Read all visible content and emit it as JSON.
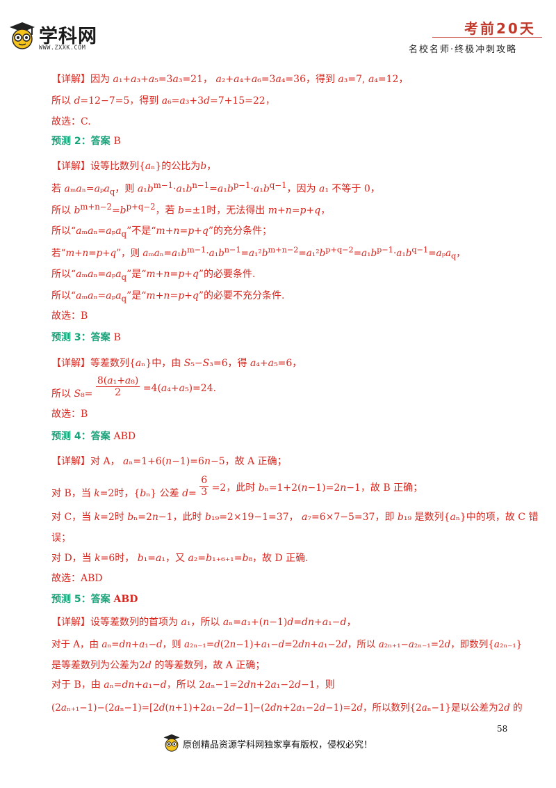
{
  "header": {
    "logo_text": "学科网",
    "logo_url": "WWW.ZXXK.COM",
    "title": "考前20天",
    "subtitle": "名校名师·终极冲刺攻略"
  },
  "lines": [
    {
      "id": "l1",
      "text": "【详解】因为 a₁+a₃+a₅=3a₃=21， a₂+a₄+a₆=3a₄=36，得到 a₃=7, a₄=12，"
    },
    {
      "id": "l2",
      "text": "所以 d=12−7=5，得到 a₆=a₃+3d=7+15=22，"
    },
    {
      "id": "l3",
      "text": "故选：C."
    },
    {
      "id": "p2",
      "label": "预测 2：答案",
      "answer": "B"
    },
    {
      "id": "l4",
      "text": "【详解】设等比数列{aₙ}的公比为b，"
    },
    {
      "id": "l5",
      "text": "若 aₘaₙ=aₚa_q，则 a₁bᵐ⁻¹·a₁bⁿ⁻¹=a₁bᵖ⁻¹·a₁b^(q−1)，因为 a₁ 不等于 0，"
    },
    {
      "id": "l6",
      "text": "所以 b^(m+n−2)=b^(p+q−2)，若 b=±1时，无法得出 m+n=p+q，"
    },
    {
      "id": "l7",
      "text": "所以“aₘaₙ=aₚa_q”不是“m+n=p+q”的充分条件；"
    },
    {
      "id": "l8",
      "text": "若“m+n=p+q”，则 aₘaₙ=a₁bᵐ⁻¹·a₁bⁿ⁻¹=a₁²b^(m+n−2)=a₁²b^(p+q−2)=a₁bᵖ⁻¹·a₁b^(q−1)=aₚa_q，"
    },
    {
      "id": "l9",
      "text": "所以“aₘaₙ=aₚa_q”是“m+n=p+q”的必要条件."
    },
    {
      "id": "l10",
      "text": "所以“aₘaₙ=aₚa_q”是“m+n=p+q”的必要不充分条件."
    },
    {
      "id": "l11",
      "text": "故选：B"
    },
    {
      "id": "p3",
      "label": "预测 3：答案",
      "answer": "B"
    },
    {
      "id": "l12",
      "text": "【详解】等差数列{aₙ}中，由 S₅−S₃=6，得 a₄+a₅=6，"
    },
    {
      "id": "l13",
      "text": "所以 S₈ = 8(a₁+a₈)/2 = 4(a₄+a₅) = 24."
    },
    {
      "id": "l14",
      "text": "故选：B"
    },
    {
      "id": "p4",
      "label": "预测 4：答案",
      "answer": "ABD"
    },
    {
      "id": "l15",
      "text": "【详解】对 A， aₙ=1+6(n−1)=6n−5，故 A 正确；"
    },
    {
      "id": "l16",
      "text": "对 B，当 k=2时，{bₙ} 公差 d = 6/3 = 2，此时 bₙ=1+2(n−1)=2n−1，故 B 正确；"
    },
    {
      "id": "l17",
      "text": "对 C，当 k=2时 bₙ=2n−1，此时 b₁₉=2×19−1=37， a₇=6×7−5=37，即 b₁₉ 是数列{aₙ}中的项，故 C 错"
    },
    {
      "id": "l18",
      "text": "误；"
    },
    {
      "id": "l19",
      "text": "对 D，当 k=6时， b₁=a₁，又 a₂=b₁₊₆₊₁=b₈，故 D 正确."
    },
    {
      "id": "l20",
      "text": "故选：ABD"
    },
    {
      "id": "p5",
      "label": "预测 5：答案",
      "answer": "ABD"
    },
    {
      "id": "l21",
      "text": "【详解】设等差数列的首项为 a₁，所以 aₙ=a₁+(n−1)d=dn+a₁−d，"
    },
    {
      "id": "l22",
      "text": "对于 A，由 aₙ=dn+a₁−d，则 a₂ₙ₋₁=d(2n−1)+a₁−d=2dn+a₁−2d，所以 a₂ₙ₊₁−a₂ₙ₋₁=2d，即数列{a₂ₙ₋₁}"
    },
    {
      "id": "l23",
      "text": "是等差数列为公差为2d 的等差数列，故 A 正确；"
    },
    {
      "id": "l24",
      "text": "对于 B，由 aₙ=dn+a₁−d，所以 2aₙ−1=2dn+2a₁−2d−1，则"
    },
    {
      "id": "l25",
      "text": "(2aₙ₊₁−1)−(2aₙ−1)=[2d(n+1)+2a₁−2d−1]−(2dn+2a₁−2d−1)=2d，所以数列{2aₙ−1}是以公差为2d 的"
    }
  ],
  "footer": {
    "page_number": "58",
    "copyright": "原创精品资源学科网独家享有版权，侵权必究！"
  }
}
